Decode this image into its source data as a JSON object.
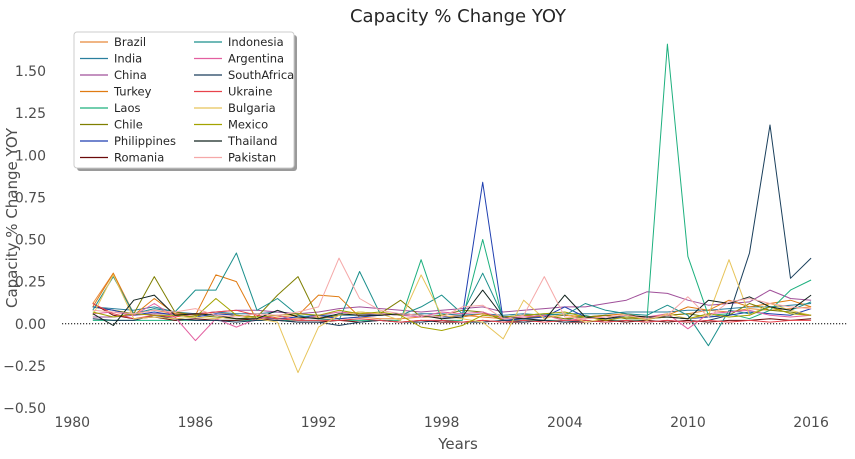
{
  "chart_data": {
    "type": "line",
    "title": "Capacity % Change YOY",
    "xlabel": "Years",
    "ylabel": "Capacity % Change YOY",
    "xlim": [
      1979.5,
      2017.8
    ],
    "ylim": [
      -0.5,
      1.72
    ],
    "xticks": [
      1980,
      1986,
      1992,
      1998,
      2004,
      2010,
      2016
    ],
    "xtick_labels": [
      "1980",
      "1986",
      "1992",
      "1998",
      "2004",
      "2010",
      "2016"
    ],
    "yticks": [
      -0.5,
      -0.25,
      0,
      0.25,
      0.5,
      0.75,
      1.0,
      1.25,
      1.5
    ],
    "ytick_labels": [
      "−0.50",
      "−0.25",
      "0.00",
      "0.25",
      "0.50",
      "0.75",
      "1.00",
      "1.25",
      "1.50"
    ],
    "zero_line": true,
    "grid": false,
    "legend_position": "top-left",
    "legend_columns": 2,
    "x": [
      1981,
      1982,
      1983,
      1984,
      1985,
      1986,
      1987,
      1988,
      1989,
      1990,
      1991,
      1992,
      1993,
      1994,
      1995,
      1996,
      1997,
      1998,
      1999,
      2000,
      2001,
      2002,
      2003,
      2004,
      2005,
      2006,
      2007,
      2008,
      2009,
      2010,
      2011,
      2012,
      2013,
      2014,
      2015,
      2016
    ],
    "series": [
      {
        "name": "Brazil",
        "color": "#e8893b",
        "values": [
          0.12,
          0.3,
          0.06,
          0.08,
          0.06,
          0.05,
          0.07,
          0.05,
          0.04,
          0.03,
          0.03,
          0.04,
          0.03,
          0.04,
          0.03,
          0.03,
          0.04,
          0.04,
          0.05,
          0.04,
          0.03,
          0.04,
          0.04,
          0.05,
          0.04,
          0.04,
          0.05,
          0.04,
          0.05,
          0.06,
          0.08,
          0.07,
          0.09,
          0.08,
          0.09,
          0.1
        ]
      },
      {
        "name": "India",
        "color": "#2a7f9e",
        "values": [
          0.1,
          0.09,
          0.08,
          0.1,
          0.07,
          0.06,
          0.07,
          0.06,
          0.06,
          0.07,
          0.06,
          0.05,
          0.05,
          0.05,
          0.06,
          0.05,
          0.06,
          0.06,
          0.05,
          0.06,
          0.05,
          0.06,
          0.05,
          0.06,
          0.06,
          0.06,
          0.07,
          0.07,
          0.07,
          0.08,
          0.08,
          0.09,
          0.1,
          0.1,
          0.11,
          0.12
        ]
      },
      {
        "name": "China",
        "color": "#a0509a",
        "values": [
          0.04,
          0.04,
          0.05,
          0.06,
          0.06,
          0.06,
          0.07,
          0.08,
          0.08,
          0.07,
          0.06,
          0.07,
          0.09,
          0.1,
          0.09,
          0.08,
          0.07,
          0.08,
          0.09,
          0.1,
          0.07,
          0.08,
          0.09,
          0.1,
          0.1,
          0.12,
          0.14,
          0.19,
          0.18,
          0.14,
          0.11,
          0.12,
          0.13,
          0.2,
          0.15,
          0.14
        ]
      },
      {
        "name": "Turkey",
        "color": "#e07b12",
        "values": [
          0.1,
          0.3,
          0.05,
          0.15,
          0.06,
          0.05,
          0.29,
          0.25,
          0.02,
          0.04,
          0.05,
          0.17,
          0.16,
          0.04,
          0.05,
          0.06,
          0.05,
          0.04,
          0.04,
          0.06,
          0.04,
          0.05,
          0.04,
          0.05,
          0.04,
          0.05,
          0.06,
          0.03,
          0.05,
          0.1,
          0.08,
          0.14,
          0.1,
          0.12,
          0.14,
          0.1
        ]
      },
      {
        "name": "Laos",
        "color": "#1db07e",
        "values": [
          0.02,
          0.02,
          0.02,
          0.02,
          0.02,
          0.02,
          0.02,
          0.02,
          0.02,
          0.02,
          0.02,
          0.02,
          0.02,
          0.02,
          0.02,
          0.02,
          0.38,
          0.02,
          0.02,
          0.5,
          0.02,
          0.02,
          0.02,
          0.02,
          0.05,
          0.02,
          0.02,
          0.02,
          1.66,
          0.4,
          0.05,
          0.06,
          0.03,
          0.08,
          0.2,
          0.26
        ]
      },
      {
        "name": "Chile",
        "color": "#7f7f00",
        "values": [
          0.1,
          0.08,
          0.06,
          0.28,
          0.07,
          0.05,
          0.04,
          0.03,
          0.04,
          0.17,
          0.28,
          0.03,
          0.05,
          0.07,
          0.06,
          0.14,
          0.04,
          0.05,
          0.08,
          0.07,
          0.02,
          0.03,
          0.05,
          0.03,
          0.04,
          0.05,
          0.03,
          0.03,
          0.05,
          0.06,
          0.04,
          0.05,
          0.12,
          0.08,
          0.07,
          0.05
        ]
      },
      {
        "name": "Philippines",
        "color": "#1f3fb0",
        "values": [
          0.1,
          0.08,
          0.05,
          0.07,
          0.05,
          0.04,
          0.06,
          0.05,
          0.04,
          0.03,
          0.04,
          0.05,
          0.03,
          0.04,
          0.05,
          0.06,
          0.05,
          0.04,
          0.04,
          0.84,
          0.02,
          0.03,
          0.04,
          0.1,
          0.04,
          0.03,
          0.04,
          0.03,
          0.04,
          0.03,
          0.04,
          0.05,
          0.07,
          0.06,
          0.05,
          0.09
        ]
      },
      {
        "name": "Romania",
        "color": "#6b0a0a",
        "values": [
          0.12,
          0.05,
          0.03,
          0.04,
          0.02,
          0.03,
          0.02,
          0.02,
          0.03,
          0.02,
          0.01,
          0.01,
          0.02,
          0.01,
          0.02,
          0.01,
          0.02,
          0.01,
          0.01,
          0.02,
          0.01,
          0.01,
          0.02,
          0.01,
          0.01,
          0.02,
          0.01,
          0.02,
          0.01,
          0.02,
          0.01,
          0.02,
          0.02,
          0.03,
          0.02,
          0.03
        ]
      },
      {
        "name": "Indonesia",
        "color": "#1b8f8c",
        "values": [
          0.08,
          0.28,
          0.06,
          0.09,
          0.07,
          0.2,
          0.2,
          0.42,
          0.08,
          0.15,
          0.05,
          0.03,
          0.02,
          0.31,
          0.06,
          0.05,
          0.1,
          0.17,
          0.06,
          0.3,
          0.04,
          0.05,
          0.06,
          0.05,
          0.12,
          0.08,
          0.06,
          0.05,
          0.11,
          0.05,
          -0.13,
          0.08,
          0.06,
          0.1,
          0.08,
          0.13
        ]
      },
      {
        "name": "Argentina",
        "color": "#e35fa0",
        "values": [
          0.06,
          0.07,
          0.05,
          0.12,
          0.04,
          -0.1,
          0.03,
          -0.02,
          0.03,
          0.05,
          0.02,
          0.05,
          0.07,
          0.06,
          0.06,
          0.05,
          0.04,
          0.07,
          0.06,
          0.07,
          0.03,
          0.04,
          0.05,
          0.02,
          0.03,
          0.04,
          0.05,
          0.04,
          0.06,
          -0.03,
          0.06,
          0.07,
          0.08,
          0.05,
          0.04,
          0.05
        ]
      },
      {
        "name": "SouthAfrica",
        "color": "#1a3f5c",
        "values": [
          0.03,
          0.02,
          0.02,
          0.05,
          0.03,
          0.02,
          0.02,
          0.01,
          0.02,
          0.02,
          0.01,
          0.01,
          -0.01,
          0.01,
          0.02,
          0.01,
          0.01,
          0.02,
          0.01,
          0.01,
          0.02,
          0.01,
          0.02,
          0.01,
          0.02,
          0.01,
          0.02,
          0.01,
          0.02,
          0.01,
          0.02,
          0.05,
          0.42,
          1.18,
          0.27,
          0.39
        ]
      },
      {
        "name": "Ukraine",
        "color": "#e8434c",
        "values": [
          0.12,
          0.06,
          0.03,
          0.05,
          0.04,
          0.06,
          0.07,
          0.08,
          0.05,
          0.03,
          0.02,
          0.02,
          0.02,
          0.03,
          0.02,
          0.01,
          0.02,
          0.02,
          0.01,
          0.02,
          0.01,
          0.02,
          0.01,
          0.02,
          0.02,
          0.01,
          0.02,
          0.01,
          0.02,
          0.01,
          0.02,
          0.01,
          0.02,
          0.01,
          0.02,
          0.02
        ]
      },
      {
        "name": "Bulgaria",
        "color": "#e7c45a",
        "values": [
          0.05,
          0.29,
          0.03,
          0.04,
          0.03,
          0.04,
          0.03,
          0.05,
          0.03,
          0.01,
          -0.29,
          -0.02,
          0.05,
          0.07,
          0.06,
          0.02,
          0.29,
          0.05,
          0.03,
          0.01,
          -0.09,
          0.14,
          0.03,
          0.06,
          0.01,
          0.03,
          0.05,
          0.02,
          0.06,
          0.03,
          0.05,
          0.38,
          0.05,
          0.12,
          0.08,
          0.05
        ]
      },
      {
        "name": "Mexico",
        "color": "#a3a300",
        "values": [
          0.07,
          0.04,
          0.06,
          0.05,
          0.05,
          0.04,
          0.15,
          0.05,
          0.04,
          0.05,
          0.06,
          0.05,
          0.08,
          0.06,
          0.07,
          0.05,
          -0.02,
          -0.04,
          -0.01,
          0.05,
          0.04,
          0.05,
          0.06,
          0.07,
          0.04,
          0.02,
          0.04,
          0.03,
          0.04,
          0.03,
          0.06,
          0.04,
          0.05,
          0.1,
          0.06,
          0.05
        ]
      },
      {
        "name": "Thailand",
        "color": "#11231e",
        "values": [
          0.06,
          -0.01,
          0.14,
          0.17,
          0.05,
          0.06,
          0.05,
          0.03,
          0.03,
          0.08,
          0.04,
          0.03,
          0.06,
          0.05,
          0.05,
          0.06,
          0.05,
          0.03,
          0.04,
          0.2,
          0.04,
          0.03,
          0.02,
          0.17,
          0.04,
          0.03,
          0.05,
          0.04,
          0.04,
          0.03,
          0.14,
          0.12,
          0.16,
          0.1,
          0.08,
          0.17
        ]
      },
      {
        "name": "Pakistan",
        "color": "#f5a8a8",
        "values": [
          0.08,
          0.07,
          0.06,
          0.08,
          0.07,
          0.09,
          0.05,
          0.04,
          0.06,
          0.05,
          0.07,
          0.1,
          0.39,
          0.15,
          0.08,
          0.06,
          0.05,
          0.04,
          0.1,
          0.11,
          0.03,
          0.05,
          0.28,
          0.04,
          0.03,
          0.04,
          0.05,
          0.03,
          0.05,
          0.16,
          0.04,
          0.13,
          0.15,
          0.12,
          0.1,
          0.09
        ]
      }
    ]
  }
}
